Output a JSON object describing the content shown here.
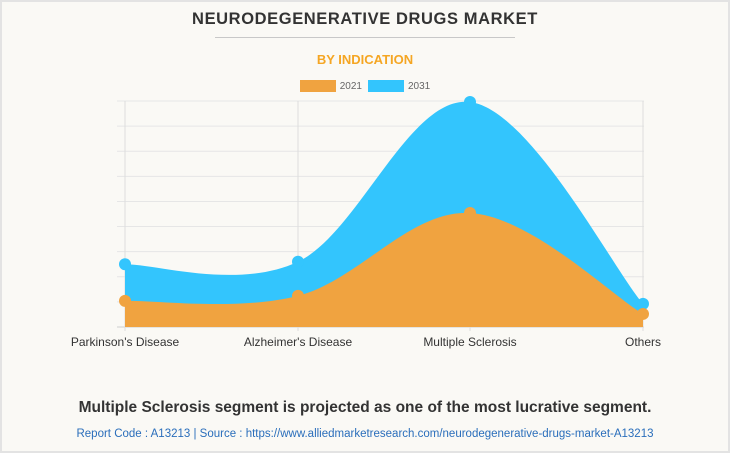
{
  "header": {
    "title": "NEURODEGENERATIVE DRUGS MARKET",
    "subtitle": "BY INDICATION"
  },
  "chart_data": {
    "type": "area",
    "title": "NEURODEGENERATIVE DRUGS MARKET",
    "subtitle": "BY INDICATION",
    "xlabel": "",
    "ylabel": "",
    "categories": [
      "Parkinson's Disease",
      "Alzheimer's Disease",
      "Multiple Sclerosis",
      "Others"
    ],
    "series": [
      {
        "name": "2021",
        "color": "#f0a340",
        "values": [
          1.04,
          1.24,
          4.54,
          0.52
        ]
      },
      {
        "name": "2031",
        "color": "#33c5fd",
        "values": [
          2.5,
          2.6,
          8.96,
          0.92
        ]
      }
    ],
    "ylim": [
      0,
      9
    ],
    "y_units_note": "relative units (no y-axis tick labels shown)",
    "grid": true,
    "legend": "top-center",
    "smooth": true
  },
  "legend": {
    "items": [
      {
        "label": "2021",
        "color": "#f0a340"
      },
      {
        "label": "2031",
        "color": "#33c5fd"
      }
    ]
  },
  "footer": {
    "headline": "Multiple Sclerosis segment is projected as one of the most lucrative segment.",
    "source": "Report Code : A13213  |  Source : https://www.alliedmarketresearch.com/neurodegenerative-drugs-market-A13213"
  }
}
